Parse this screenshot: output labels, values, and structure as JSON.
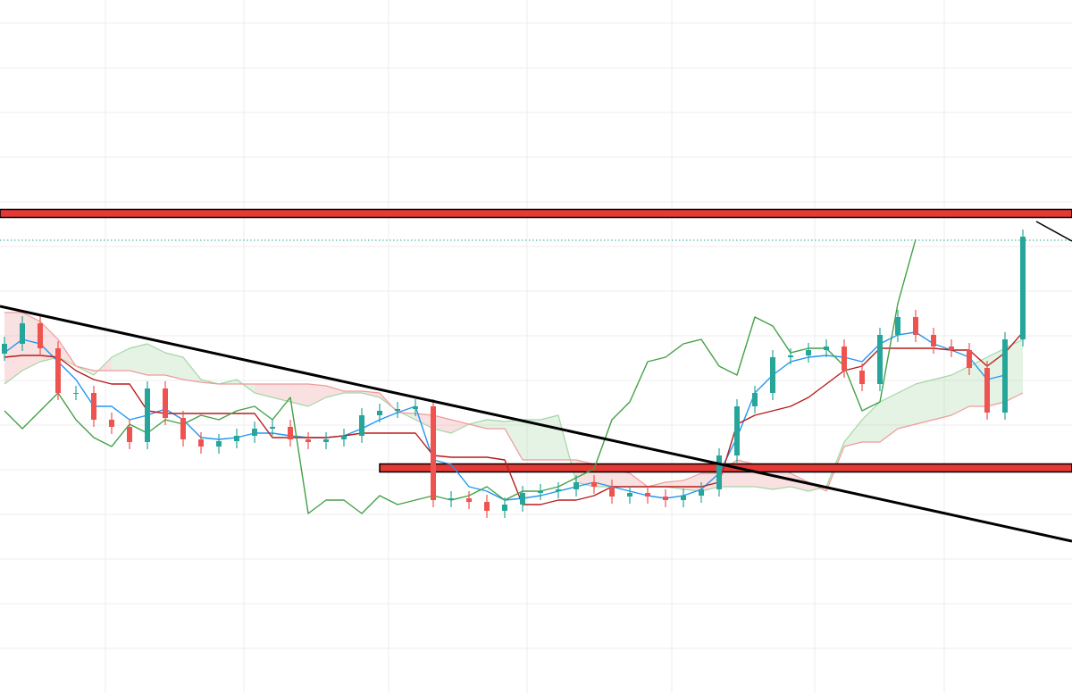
{
  "chart_data": {
    "type": "candlestick",
    "categories": [
      null,
      null,
      null,
      null,
      null,
      null,
      null,
      null,
      null,
      null,
      null,
      null,
      null,
      null,
      null,
      null,
      null,
      null,
      null,
      null,
      null,
      null,
      null,
      null,
      null,
      null,
      null,
      null,
      null,
      null,
      null,
      null,
      null,
      null,
      null,
      null,
      null,
      null,
      null,
      null,
      null,
      null,
      null,
      null,
      null,
      null,
      null,
      null,
      null,
      null,
      null,
      null,
      null,
      null,
      null,
      null,
      null,
      null
    ],
    "open": [
      38.0,
      39.1,
      41.4,
      38.6,
      33.6,
      33.6,
      30.6,
      29.8,
      28.1,
      34.1,
      30.8,
      28.4,
      27.6,
      28.2,
      28.8,
      29.6,
      29.8,
      28.4,
      28.1,
      28.4,
      28.8,
      31.1,
      31.6,
      31.8,
      32.1,
      21.6,
      21.8,
      21.4,
      20.4,
      21.1,
      22.4,
      22.6,
      22.8,
      23.6,
      23.1,
      22.0,
      22.4,
      22.0,
      21.6,
      22.1,
      22.8,
      26.6,
      32.1,
      33.6,
      37.6,
      37.8,
      38.4,
      38.8,
      36.1,
      34.6,
      40.1,
      42.1,
      40.1,
      38.8,
      38.4,
      36.4,
      31.4,
      39.6
    ],
    "high": [
      39.9,
      42.2,
      42.2,
      39.4,
      34.4,
      34.4,
      31.4,
      30.6,
      34.9,
      34.9,
      31.6,
      29.2,
      29.0,
      29.6,
      30.4,
      30.6,
      30.6,
      29.2,
      29.2,
      29.6,
      31.9,
      32.4,
      32.6,
      32.9,
      32.9,
      22.6,
      22.6,
      22.2,
      21.9,
      23.2,
      23.4,
      23.6,
      24.4,
      24.4,
      23.9,
      23.2,
      23.2,
      22.8,
      22.9,
      23.6,
      27.4,
      32.9,
      34.4,
      38.4,
      38.6,
      39.2,
      39.6,
      39.6,
      36.9,
      40.9,
      42.9,
      42.9,
      40.9,
      39.6,
      39.2,
      37.2,
      40.4,
      51.9
    ],
    "low": [
      37.2,
      38.3,
      37.8,
      32.8,
      32.8,
      29.8,
      29.0,
      27.3,
      27.3,
      30.0,
      27.6,
      26.8,
      26.8,
      27.4,
      28.0,
      28.8,
      27.6,
      27.3,
      27.3,
      27.6,
      28.0,
      30.3,
      30.8,
      31.0,
      20.8,
      20.8,
      20.6,
      19.6,
      19.6,
      20.3,
      21.6,
      21.8,
      22.0,
      22.3,
      21.2,
      21.2,
      21.2,
      20.8,
      20.8,
      21.3,
      22.0,
      25.8,
      31.3,
      32.8,
      36.8,
      37.0,
      37.6,
      35.3,
      33.8,
      33.8,
      39.3,
      39.3,
      38.0,
      37.6,
      35.6,
      30.6,
      30.6,
      38.8
    ],
    "close": [
      39.1,
      41.4,
      38.6,
      33.6,
      33.6,
      30.6,
      29.8,
      28.1,
      34.1,
      30.8,
      28.4,
      27.6,
      28.2,
      28.8,
      29.6,
      29.8,
      28.4,
      28.1,
      28.4,
      28.8,
      31.1,
      31.6,
      31.8,
      32.1,
      21.6,
      21.8,
      21.4,
      20.4,
      21.1,
      22.4,
      22.6,
      22.8,
      23.6,
      23.1,
      22.0,
      22.4,
      22.0,
      21.6,
      22.1,
      22.8,
      26.6,
      32.1,
      33.6,
      37.6,
      37.8,
      38.4,
      38.8,
      36.1,
      34.6,
      40.1,
      42.1,
      40.1,
      38.8,
      38.4,
      36.4,
      31.4,
      39.6,
      51.1
    ],
    "up_color": "#26a69a",
    "down_color": "#ef5350",
    "series": [
      {
        "color": "#2196f3",
        "values": [
          38.1,
          39.6,
          39.1,
          37.1,
          35.1,
          32.1,
          32.1,
          30.6,
          31.1,
          31.8,
          30.6,
          28.6,
          28.4,
          28.6,
          29.1,
          29.1,
          28.8,
          28.6,
          28.6,
          28.8,
          29.6,
          30.6,
          31.4,
          32.1,
          26.1,
          25.6,
          23.1,
          22.6,
          21.6,
          21.8,
          22.1,
          22.6,
          23.1,
          23.6,
          23.1,
          22.6,
          22.1,
          21.8,
          22.1,
          22.8,
          24.6,
          28.6,
          33.6,
          35.6,
          37.1,
          37.6,
          37.8,
          37.6,
          37.1,
          39.1,
          40.1,
          40.4,
          39.1,
          38.4,
          37.6,
          35.1,
          35.6,
          null
        ]
      },
      {
        "color": "#b71c1c",
        "values": [
          37.6,
          37.8,
          37.8,
          37.6,
          36.1,
          35.1,
          34.6,
          34.6,
          31.6,
          31.3,
          31.3,
          31.3,
          31.3,
          31.3,
          31.3,
          28.6,
          28.6,
          28.6,
          28.6,
          28.8,
          29.1,
          29.1,
          29.1,
          29.1,
          26.6,
          26.4,
          26.4,
          26.4,
          26.1,
          21.1,
          21.1,
          21.6,
          21.6,
          22.1,
          23.1,
          23.1,
          23.1,
          23.1,
          23.1,
          23.1,
          23.6,
          30.1,
          31.1,
          31.6,
          32.1,
          33.1,
          34.6,
          36.1,
          36.6,
          38.6,
          38.6,
          38.6,
          38.6,
          38.4,
          38.4,
          36.6,
          38.1,
          40.4
        ]
      },
      {
        "color": "#43a047",
        "values": [
          31.6,
          29.6,
          31.6,
          33.6,
          30.6,
          28.6,
          27.6,
          30.1,
          29.1,
          30.6,
          30.1,
          31.1,
          30.6,
          31.6,
          32.1,
          30.6,
          33.1,
          20.1,
          21.6,
          21.6,
          20.1,
          22.1,
          21.1,
          21.6,
          22.1,
          21.6,
          22.1,
          23.1,
          21.6,
          22.6,
          22.6,
          23.1,
          24.1,
          25.1,
          30.6,
          32.6,
          37.1,
          37.6,
          39.1,
          39.6,
          36.6,
          35.6,
          42.1,
          41.1,
          38.1,
          38.6,
          38.6,
          36.6,
          31.6,
          32.6,
          43.6,
          50.8,
          null,
          null,
          null,
          null,
          null,
          null
        ]
      }
    ],
    "cloud": {
      "span_a": [
        34.6,
        36.1,
        37.1,
        37.6,
        36.6,
        35.6,
        37.6,
        38.6,
        39.1,
        38.1,
        37.6,
        35.1,
        34.6,
        35.1,
        33.6,
        33.1,
        32.6,
        32.1,
        33.1,
        33.6,
        33.6,
        33.1,
        31.6,
        30.6,
        29.6,
        29.1,
        30.1,
        30.6,
        30.4,
        30.6,
        30.6,
        31.1,
        23.6,
        23.1,
        23.1,
        23.1,
        23.1,
        23.1,
        22.8,
        22.6,
        23.1,
        23.1,
        23.1,
        22.8,
        23.1,
        22.6,
        23.1,
        28.1,
        30.6,
        32.6,
        33.6,
        34.6,
        35.1,
        35.6,
        36.6,
        37.6,
        38.6,
        39.6
      ],
      "span_b": [
        42.6,
        42.6,
        41.6,
        39.6,
        36.6,
        36.1,
        36.1,
        36.1,
        35.6,
        35.6,
        35.1,
        34.8,
        34.6,
        34.6,
        34.6,
        34.6,
        34.6,
        34.6,
        34.4,
        33.8,
        33.8,
        33.6,
        31.4,
        31.3,
        31.1,
        30.6,
        30.1,
        29.6,
        29.6,
        26.1,
        26.1,
        26.1,
        26.1,
        25.6,
        25.1,
        24.6,
        23.1,
        23.6,
        23.8,
        24.6,
        24.6,
        26.1,
        25.6,
        25.6,
        24.6,
        23.6,
        22.6,
        27.6,
        28.1,
        28.1,
        29.6,
        30.1,
        30.6,
        31.1,
        32.1,
        32.1,
        32.6,
        33.6
      ],
      "up_color": "#a5d6a7",
      "down_color": "#ef9a9a"
    },
    "levels": [
      {
        "value": 53.7,
        "start": -0.25,
        "color": "#e53935",
        "style": "band"
      },
      {
        "value": 25.2,
        "start": 21.0,
        "color": "#e53935",
        "style": "band"
      },
      {
        "value": 50.7,
        "start": -0.25,
        "color": "#26a69a",
        "style": "dotted"
      }
    ],
    "trend_lines": [
      {
        "x": [
          -0.25,
          59.75
        ],
        "values": [
          43.3,
          17.0
        ],
        "width": 3
      },
      {
        "x": [
          57.75,
          59.75
        ],
        "values": [
          52.8,
          50.6
        ],
        "width": 1.5
      }
    ],
    "xlim": [
      -0.25,
      59.75
    ],
    "ylim": [
      0,
      77.6
    ],
    "xticks": [
      5.65,
      13.4,
      21.5,
      29.25,
      37.35,
      45.35,
      52.6
    ],
    "yticks": [
      5,
      10,
      15,
      20,
      25,
      30,
      35,
      40,
      45,
      50,
      55,
      60,
      65,
      70,
      75
    ],
    "grid": true
  }
}
